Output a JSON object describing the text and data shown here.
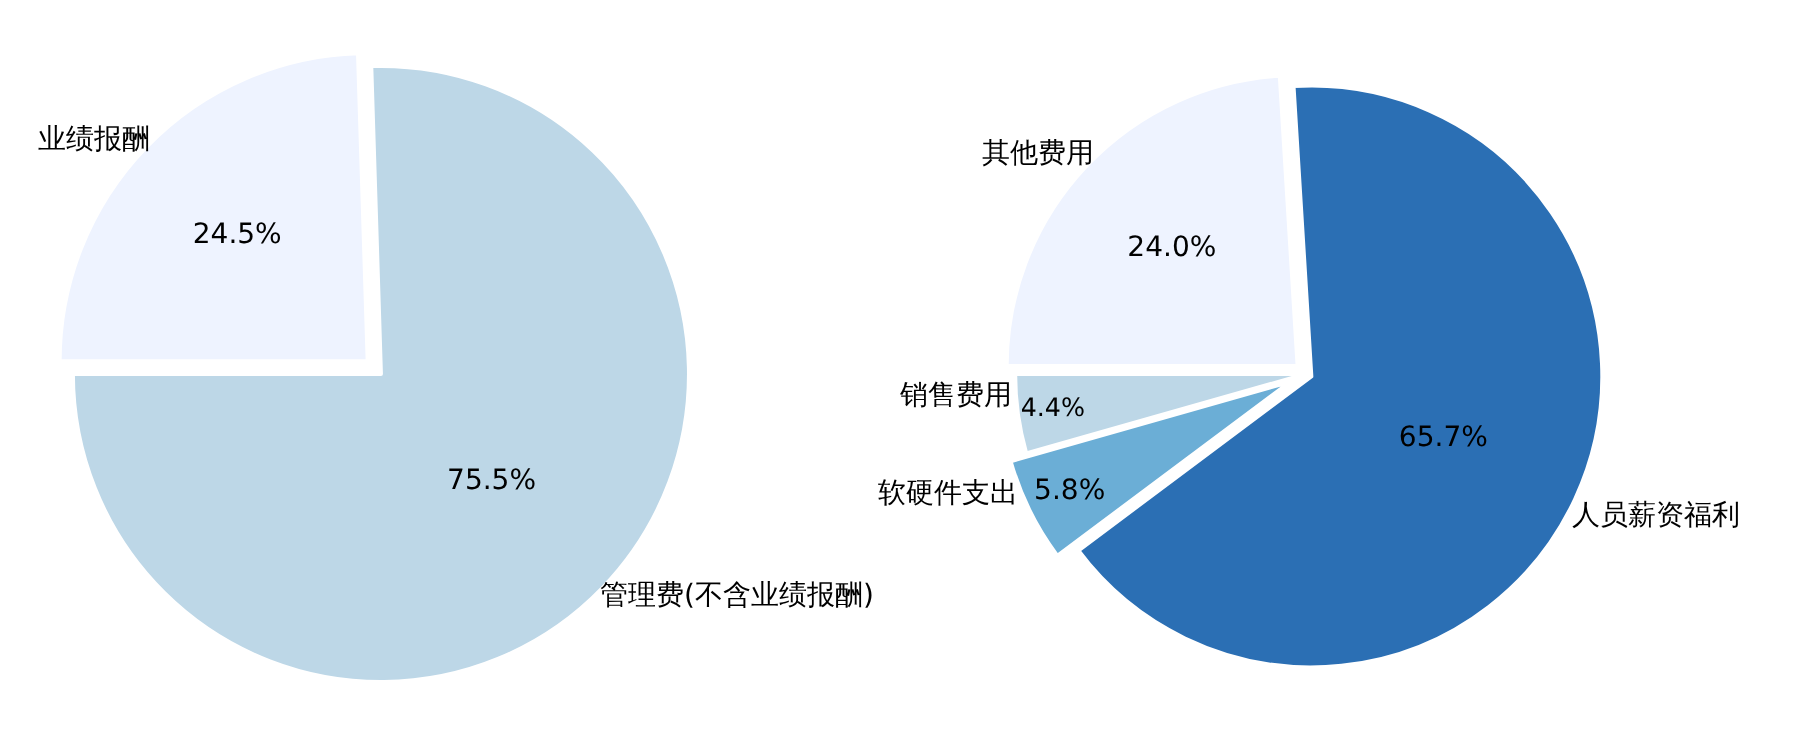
{
  "chart_data": [
    {
      "type": "pie",
      "categories": [
        "业绩报酬",
        "管理费(不含业绩报酬)"
      ],
      "values": [
        24.5,
        75.5
      ],
      "value_labels": [
        "24.5%",
        "75.5%"
      ],
      "colors": [
        "#eef3ff",
        "#bdd7e7"
      ]
    },
    {
      "type": "pie",
      "categories": [
        "其他费用",
        "销售费用",
        "软硬件支出",
        "人员薪资福利"
      ],
      "values": [
        24.0,
        4.4,
        5.8,
        65.7
      ],
      "value_labels": [
        "24.0%",
        "4.4%",
        "5.8%",
        "65.7%"
      ],
      "colors": [
        "#eef3ff",
        "#bdd7e7",
        "#6baed6",
        "#2b6fb4"
      ]
    }
  ]
}
